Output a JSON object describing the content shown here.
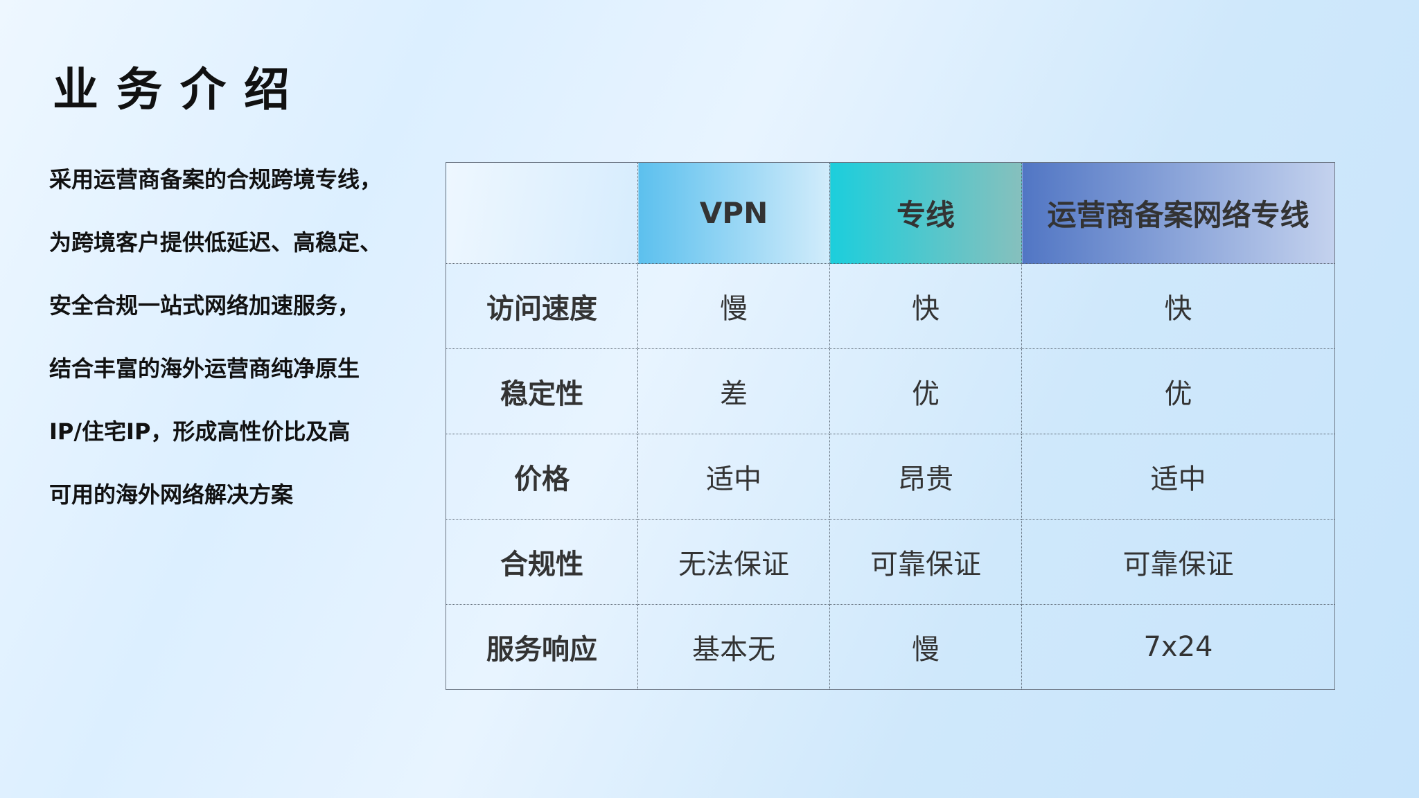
{
  "title": "业务介绍",
  "intro_lines": [
    "采用运营商备案的合规跨境专线，",
    "为跨境客户提供低延迟、高稳定、",
    "安全合规一站式网络加速服务，",
    "结合丰富的海外运营商纯净原生",
    "IP/住宅IP，形成高性价比及高",
    "可用的海外网络解决方案"
  ],
  "table": {
    "headers": [
      "",
      "VPN",
      "专线",
      "运营商备案网络专线"
    ],
    "header_colors": [
      "#e6f3ff",
      "#5cc0ee",
      "#1ccedc",
      "#5176c4"
    ],
    "rows": [
      [
        "访问速度",
        "慢",
        "快",
        "快"
      ],
      [
        "稳定性",
        "差",
        "优",
        "优"
      ],
      [
        "价格",
        "适中",
        "昂贵",
        "适中"
      ],
      [
        "合规性",
        "无法保证",
        "可靠保证",
        "可靠保证"
      ],
      [
        "服务响应",
        "基本无",
        "慢",
        "7x24"
      ]
    ]
  }
}
